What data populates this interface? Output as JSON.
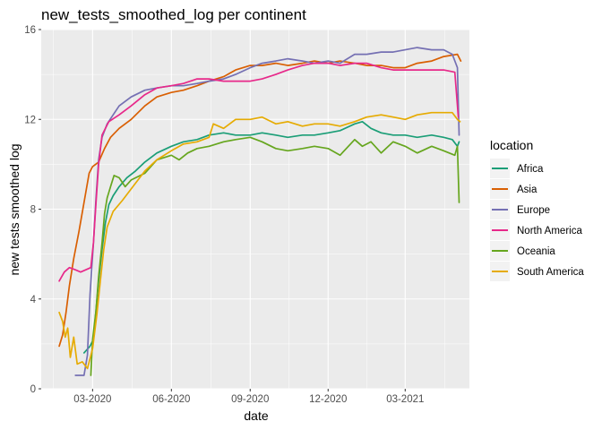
{
  "chart_data": {
    "type": "line",
    "title": "new_tests_smoothed_log per continent",
    "xlabel": "date",
    "ylabel": "new tests smoothed log",
    "x_ticks": [
      {
        "label": "03-2020",
        "date": "2020-03-01"
      },
      {
        "label": "06-2020",
        "date": "2020-06-01"
      },
      {
        "label": "09-2020",
        "date": "2020-09-01"
      },
      {
        "label": "12-2020",
        "date": "2020-12-01"
      },
      {
        "label": "03-2021",
        "date": "2021-03-01"
      }
    ],
    "y_ticks": [
      0,
      4,
      8,
      12,
      16
    ],
    "xlim": [
      "2020-01-01",
      "2021-05-15"
    ],
    "ylim": [
      0,
      16
    ],
    "grid": true,
    "legend": {
      "title": "location",
      "position": "right"
    },
    "series": [
      {
        "name": "Africa",
        "color": "#1b9e77",
        "points": [
          [
            "2020-02-20",
            1.6
          ],
          [
            "2020-02-27",
            1.9
          ],
          [
            "2020-03-02",
            2.2
          ],
          [
            "2020-03-05",
            3.5
          ],
          [
            "2020-03-08",
            4.8
          ],
          [
            "2020-03-12",
            6.2
          ],
          [
            "2020-03-16",
            7.4
          ],
          [
            "2020-03-20",
            8.2
          ],
          [
            "2020-03-25",
            8.6
          ],
          [
            "2020-04-01",
            9.0
          ],
          [
            "2020-04-10",
            9.4
          ],
          [
            "2020-04-20",
            9.7
          ],
          [
            "2020-05-01",
            10.1
          ],
          [
            "2020-05-15",
            10.5
          ],
          [
            "2020-06-01",
            10.8
          ],
          [
            "2020-06-15",
            11.0
          ],
          [
            "2020-07-01",
            11.1
          ],
          [
            "2020-07-15",
            11.3
          ],
          [
            "2020-08-01",
            11.4
          ],
          [
            "2020-08-15",
            11.3
          ],
          [
            "2020-09-01",
            11.3
          ],
          [
            "2020-09-15",
            11.4
          ],
          [
            "2020-10-01",
            11.3
          ],
          [
            "2020-10-15",
            11.2
          ],
          [
            "2020-11-01",
            11.3
          ],
          [
            "2020-11-15",
            11.3
          ],
          [
            "2020-12-01",
            11.4
          ],
          [
            "2020-12-15",
            11.5
          ],
          [
            "2021-01-01",
            11.8
          ],
          [
            "2021-01-10",
            11.9
          ],
          [
            "2021-01-20",
            11.6
          ],
          [
            "2021-02-01",
            11.4
          ],
          [
            "2021-02-15",
            11.3
          ],
          [
            "2021-03-01",
            11.3
          ],
          [
            "2021-03-15",
            11.2
          ],
          [
            "2021-04-01",
            11.3
          ],
          [
            "2021-04-15",
            11.2
          ],
          [
            "2021-04-25",
            11.1
          ],
          [
            "2021-05-01",
            10.8
          ],
          [
            "2021-05-03",
            11.0
          ]
        ]
      },
      {
        "name": "Asia",
        "color": "#d95f02",
        "points": [
          [
            "2020-01-22",
            1.9
          ],
          [
            "2020-01-26",
            2.4
          ],
          [
            "2020-01-30",
            3.4
          ],
          [
            "2020-02-03",
            4.6
          ],
          [
            "2020-02-08",
            5.8
          ],
          [
            "2020-02-14",
            7.0
          ],
          [
            "2020-02-20",
            8.3
          ],
          [
            "2020-02-26",
            9.6
          ],
          [
            "2020-03-01",
            9.9
          ],
          [
            "2020-03-08",
            10.1
          ],
          [
            "2020-03-15",
            10.7
          ],
          [
            "2020-03-22",
            11.2
          ],
          [
            "2020-04-01",
            11.6
          ],
          [
            "2020-04-15",
            12.0
          ],
          [
            "2020-05-01",
            12.6
          ],
          [
            "2020-05-15",
            13.0
          ],
          [
            "2020-06-01",
            13.2
          ],
          [
            "2020-06-15",
            13.3
          ],
          [
            "2020-07-01",
            13.5
          ],
          [
            "2020-07-15",
            13.7
          ],
          [
            "2020-08-01",
            13.9
          ],
          [
            "2020-08-15",
            14.2
          ],
          [
            "2020-09-01",
            14.4
          ],
          [
            "2020-09-15",
            14.4
          ],
          [
            "2020-10-01",
            14.5
          ],
          [
            "2020-10-15",
            14.4
          ],
          [
            "2020-11-01",
            14.5
          ],
          [
            "2020-11-15",
            14.6
          ],
          [
            "2020-12-01",
            14.5
          ],
          [
            "2020-12-15",
            14.6
          ],
          [
            "2021-01-01",
            14.5
          ],
          [
            "2021-01-15",
            14.4
          ],
          [
            "2021-02-01",
            14.4
          ],
          [
            "2021-02-15",
            14.3
          ],
          [
            "2021-03-01",
            14.3
          ],
          [
            "2021-03-15",
            14.5
          ],
          [
            "2021-04-01",
            14.6
          ],
          [
            "2021-04-15",
            14.8
          ],
          [
            "2021-05-01",
            14.9
          ],
          [
            "2021-05-05",
            14.6
          ]
        ]
      },
      {
        "name": "Europe",
        "color": "#7570b3",
        "points": [
          [
            "2020-02-10",
            0.6
          ],
          [
            "2020-02-20",
            0.6
          ],
          [
            "2020-02-24",
            1.5
          ],
          [
            "2020-02-27",
            4.2
          ],
          [
            "2020-03-02",
            6.5
          ],
          [
            "2020-03-05",
            8.5
          ],
          [
            "2020-03-08",
            10.2
          ],
          [
            "2020-03-12",
            11.2
          ],
          [
            "2020-03-18",
            11.8
          ],
          [
            "2020-03-25",
            12.2
          ],
          [
            "2020-04-01",
            12.6
          ],
          [
            "2020-04-15",
            13.0
          ],
          [
            "2020-05-01",
            13.3
          ],
          [
            "2020-05-15",
            13.4
          ],
          [
            "2020-06-01",
            13.5
          ],
          [
            "2020-06-15",
            13.5
          ],
          [
            "2020-07-01",
            13.6
          ],
          [
            "2020-07-15",
            13.7
          ],
          [
            "2020-08-01",
            13.8
          ],
          [
            "2020-08-15",
            14.0
          ],
          [
            "2020-09-01",
            14.3
          ],
          [
            "2020-09-15",
            14.5
          ],
          [
            "2020-10-01",
            14.6
          ],
          [
            "2020-10-15",
            14.7
          ],
          [
            "2020-11-01",
            14.6
          ],
          [
            "2020-11-15",
            14.5
          ],
          [
            "2020-12-01",
            14.6
          ],
          [
            "2020-12-15",
            14.5
          ],
          [
            "2021-01-01",
            14.9
          ],
          [
            "2021-01-15",
            14.9
          ],
          [
            "2021-02-01",
            15.0
          ],
          [
            "2021-02-15",
            15.0
          ],
          [
            "2021-03-01",
            15.1
          ],
          [
            "2021-03-15",
            15.2
          ],
          [
            "2021-04-01",
            15.1
          ],
          [
            "2021-04-15",
            15.1
          ],
          [
            "2021-04-25",
            14.9
          ],
          [
            "2021-05-01",
            14.3
          ],
          [
            "2021-05-03",
            11.3
          ]
        ]
      },
      {
        "name": "North America",
        "color": "#e7298a",
        "points": [
          [
            "2020-01-22",
            4.8
          ],
          [
            "2020-01-28",
            5.2
          ],
          [
            "2020-02-03",
            5.4
          ],
          [
            "2020-02-10",
            5.3
          ],
          [
            "2020-02-16",
            5.2
          ],
          [
            "2020-02-22",
            5.3
          ],
          [
            "2020-02-28",
            5.4
          ],
          [
            "2020-03-02",
            6.5
          ],
          [
            "2020-03-05",
            8.3
          ],
          [
            "2020-03-08",
            10.0
          ],
          [
            "2020-03-12",
            11.3
          ],
          [
            "2020-03-20",
            11.9
          ],
          [
            "2020-04-01",
            12.2
          ],
          [
            "2020-04-15",
            12.6
          ],
          [
            "2020-05-01",
            13.1
          ],
          [
            "2020-05-15",
            13.4
          ],
          [
            "2020-06-01",
            13.5
          ],
          [
            "2020-06-15",
            13.6
          ],
          [
            "2020-07-01",
            13.8
          ],
          [
            "2020-07-15",
            13.8
          ],
          [
            "2020-08-01",
            13.7
          ],
          [
            "2020-08-15",
            13.7
          ],
          [
            "2020-09-01",
            13.7
          ],
          [
            "2020-09-15",
            13.8
          ],
          [
            "2020-10-01",
            14.0
          ],
          [
            "2020-10-15",
            14.2
          ],
          [
            "2020-11-01",
            14.4
          ],
          [
            "2020-11-15",
            14.5
          ],
          [
            "2020-12-01",
            14.5
          ],
          [
            "2020-12-15",
            14.4
          ],
          [
            "2021-01-01",
            14.5
          ],
          [
            "2021-01-15",
            14.5
          ],
          [
            "2021-02-01",
            14.3
          ],
          [
            "2021-02-15",
            14.2
          ],
          [
            "2021-03-01",
            14.2
          ],
          [
            "2021-03-15",
            14.2
          ],
          [
            "2021-04-01",
            14.2
          ],
          [
            "2021-04-15",
            14.2
          ],
          [
            "2021-04-28",
            14.1
          ],
          [
            "2021-05-02",
            12.1
          ]
        ]
      },
      {
        "name": "Oceania",
        "color": "#66a61e",
        "points": [
          [
            "2020-02-28",
            0.6
          ],
          [
            "2020-03-01",
            2.2
          ],
          [
            "2020-03-05",
            3.5
          ],
          [
            "2020-03-08",
            5.0
          ],
          [
            "2020-03-12",
            6.5
          ],
          [
            "2020-03-15",
            7.8
          ],
          [
            "2020-03-18",
            8.5
          ],
          [
            "2020-03-22",
            9.0
          ],
          [
            "2020-03-26",
            9.5
          ],
          [
            "2020-04-01",
            9.4
          ],
          [
            "2020-04-08",
            9.0
          ],
          [
            "2020-04-15",
            9.3
          ],
          [
            "2020-05-01",
            9.6
          ],
          [
            "2020-05-15",
            10.2
          ],
          [
            "2020-06-01",
            10.4
          ],
          [
            "2020-06-10",
            10.2
          ],
          [
            "2020-06-20",
            10.5
          ],
          [
            "2020-07-01",
            10.7
          ],
          [
            "2020-07-15",
            10.8
          ],
          [
            "2020-08-01",
            11.0
          ],
          [
            "2020-08-15",
            11.1
          ],
          [
            "2020-09-01",
            11.2
          ],
          [
            "2020-09-15",
            11.0
          ],
          [
            "2020-10-01",
            10.7
          ],
          [
            "2020-10-15",
            10.6
          ],
          [
            "2020-11-01",
            10.7
          ],
          [
            "2020-11-15",
            10.8
          ],
          [
            "2020-12-01",
            10.7
          ],
          [
            "2020-12-15",
            10.4
          ],
          [
            "2021-01-01",
            11.1
          ],
          [
            "2021-01-10",
            10.8
          ],
          [
            "2021-01-20",
            11.0
          ],
          [
            "2021-02-01",
            10.5
          ],
          [
            "2021-02-15",
            11.0
          ],
          [
            "2021-03-01",
            10.8
          ],
          [
            "2021-03-15",
            10.5
          ],
          [
            "2021-04-01",
            10.8
          ],
          [
            "2021-04-15",
            10.6
          ],
          [
            "2021-04-28",
            10.4
          ],
          [
            "2021-05-01",
            10.8
          ],
          [
            "2021-05-03",
            8.3
          ]
        ]
      },
      {
        "name": "South America",
        "color": "#e6ab02",
        "points": [
          [
            "2020-01-22",
            3.4
          ],
          [
            "2020-01-26",
            3.0
          ],
          [
            "2020-01-29",
            2.3
          ],
          [
            "2020-02-01",
            2.7
          ],
          [
            "2020-02-04",
            1.4
          ],
          [
            "2020-02-08",
            2.3
          ],
          [
            "2020-02-12",
            1.1
          ],
          [
            "2020-02-18",
            1.2
          ],
          [
            "2020-02-24",
            0.9
          ],
          [
            "2020-03-01",
            1.8
          ],
          [
            "2020-03-06",
            3.3
          ],
          [
            "2020-03-10",
            4.8
          ],
          [
            "2020-03-14",
            6.2
          ],
          [
            "2020-03-18",
            7.2
          ],
          [
            "2020-03-25",
            7.9
          ],
          [
            "2020-04-05",
            8.4
          ],
          [
            "2020-04-15",
            8.9
          ],
          [
            "2020-05-01",
            9.7
          ],
          [
            "2020-05-15",
            10.2
          ],
          [
            "2020-06-01",
            10.6
          ],
          [
            "2020-06-15",
            10.9
          ],
          [
            "2020-07-01",
            11.0
          ],
          [
            "2020-07-15",
            11.2
          ],
          [
            "2020-07-20",
            11.8
          ],
          [
            "2020-08-01",
            11.6
          ],
          [
            "2020-08-15",
            12.0
          ],
          [
            "2020-09-01",
            12.0
          ],
          [
            "2020-09-15",
            12.1
          ],
          [
            "2020-10-01",
            11.8
          ],
          [
            "2020-10-15",
            11.9
          ],
          [
            "2020-11-01",
            11.7
          ],
          [
            "2020-11-15",
            11.8
          ],
          [
            "2020-12-01",
            11.8
          ],
          [
            "2020-12-15",
            11.7
          ],
          [
            "2021-01-01",
            11.9
          ],
          [
            "2021-01-15",
            12.1
          ],
          [
            "2021-02-01",
            12.2
          ],
          [
            "2021-02-15",
            12.1
          ],
          [
            "2021-03-01",
            12.0
          ],
          [
            "2021-03-15",
            12.2
          ],
          [
            "2021-04-01",
            12.3
          ],
          [
            "2021-04-15",
            12.3
          ],
          [
            "2021-04-25",
            12.3
          ],
          [
            "2021-05-01",
            12.0
          ],
          [
            "2021-05-04",
            11.9
          ]
        ]
      }
    ]
  }
}
